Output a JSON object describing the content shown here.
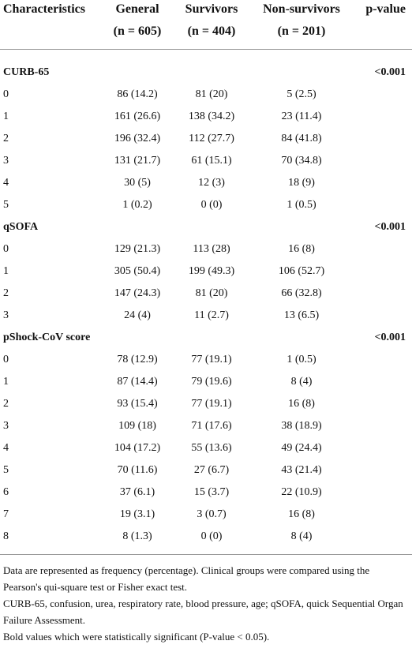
{
  "table": {
    "header": [
      "Characteristics",
      "General",
      "Survivors",
      "Non-survivors",
      "p-value"
    ],
    "subheader": [
      null,
      "(n = 605)",
      "(n = 404)",
      "(n = 201)",
      null
    ],
    "sections": [
      {
        "label": "CURB-65",
        "p_value": "<0.001",
        "rows": [
          [
            "0",
            "86 (14.2)",
            "81 (20)",
            "5 (2.5)"
          ],
          [
            "1",
            "161 (26.6)",
            "138 (34.2)",
            "23 (11.4)"
          ],
          [
            "2",
            "196 (32.4)",
            "112 (27.7)",
            "84 (41.8)"
          ],
          [
            "3",
            "131 (21.7)",
            "61 (15.1)",
            "70 (34.8)"
          ],
          [
            "4",
            "30 (5)",
            "12 (3)",
            "18 (9)"
          ],
          [
            "5",
            "1 (0.2)",
            "0 (0)",
            "1 (0.5)"
          ]
        ]
      },
      {
        "label": "qSOFA",
        "p_value": "<0.001",
        "rows": [
          [
            "0",
            "129 (21.3)",
            "113 (28)",
            "16 (8)"
          ],
          [
            "1",
            "305 (50.4)",
            "199 (49.3)",
            "106 (52.7)"
          ],
          [
            "2",
            "147 (24.3)",
            "81 (20)",
            "66 (32.8)"
          ],
          [
            "3",
            "24 (4)",
            "11 (2.7)",
            "13 (6.5)"
          ]
        ]
      },
      {
        "label": "pShock-CoV score",
        "p_value": "<0.001",
        "rows": [
          [
            "0",
            "78 (12.9)",
            "77 (19.1)",
            "1 (0.5)"
          ],
          [
            "1",
            "87 (14.4)",
            "79 (19.6)",
            "8 (4)"
          ],
          [
            "2",
            "93 (15.4)",
            "77 (19.1)",
            "16 (8)"
          ],
          [
            "3",
            "109 (18)",
            "71 (17.6)",
            "38 (18.9)"
          ],
          [
            "4",
            "104 (17.2)",
            "55 (13.6)",
            "49 (24.4)"
          ],
          [
            "5",
            "70 (11.6)",
            "27 (6.7)",
            "43 (21.4)"
          ],
          [
            "6",
            "37 (6.1)",
            "15 (3.7)",
            "22 (10.9)"
          ],
          [
            "7",
            "19 (3.1)",
            "3 (0.7)",
            "16 (8)"
          ],
          [
            "8",
            "8 (1.3)",
            "0 (0)",
            "8 (4)"
          ]
        ]
      }
    ]
  },
  "footnotes": [
    "Data are represented as frequency (percentage). Clinical groups were compared using the Pearson's qui-square test or Fisher exact test.",
    "CURB-65, confusion, urea, respiratory rate, blood pressure, age; qSOFA, quick Sequential Organ Failure Assessment.",
    "Bold values which were statistically significant (P-value < 0.05)."
  ]
}
